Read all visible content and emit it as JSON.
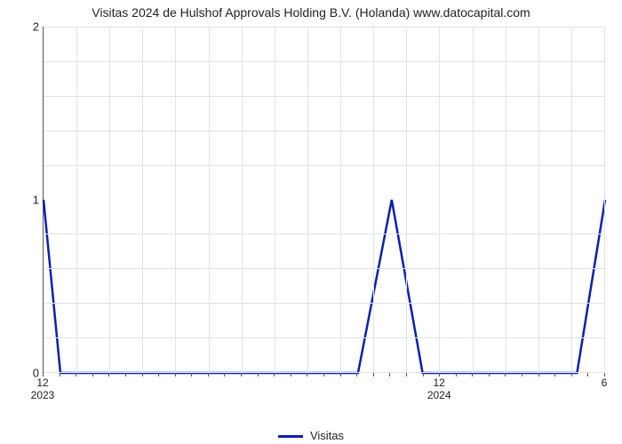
{
  "chart": {
    "type": "line",
    "title": "Visitas 2024 de Hulshof Approvals Holding B.V. (Holanda) www.datocapital.com",
    "title_fontsize": 14,
    "line_color": "#0b1fb3",
    "line_width": 2.5,
    "background_color": "#ffffff",
    "grid_color": "#e3e3e3",
    "y": {
      "min": 0,
      "max": 2,
      "ticks": [
        0,
        1,
        2
      ],
      "minor_count_between": 4
    },
    "x": {
      "major_ticks": [
        {
          "pos": 0.0,
          "label": "12",
          "year": "2023"
        },
        {
          "pos": 0.706,
          "label": "12",
          "year": "2024"
        },
        {
          "pos": 1.0,
          "label": "6",
          "year": ""
        }
      ],
      "vgrid_count": 17,
      "minor_tick_count": 34
    },
    "series": {
      "name": "Visitas",
      "points": [
        {
          "x": 0.0,
          "y": 1.0
        },
        {
          "x": 0.03,
          "y": 0.0
        },
        {
          "x": 0.56,
          "y": 0.0
        },
        {
          "x": 0.62,
          "y": 1.0
        },
        {
          "x": 0.675,
          "y": 0.0
        },
        {
          "x": 0.79,
          "y": 0.0
        },
        {
          "x": 0.82,
          "y": 0.0
        },
        {
          "x": 0.95,
          "y": 0.0
        },
        {
          "x": 1.0,
          "y": 1.0
        }
      ]
    }
  },
  "legend": {
    "label": "Visitas"
  }
}
